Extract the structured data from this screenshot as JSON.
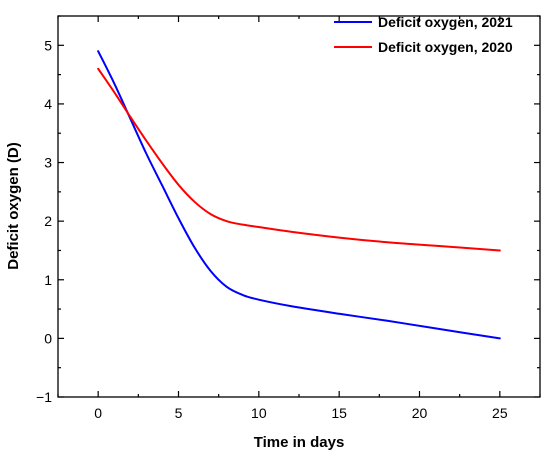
{
  "chart_data": {
    "type": "line",
    "title": "",
    "xlabel": "Time in days",
    "ylabel": "Deficit oxygen (D)",
    "xlim": [
      -2.5,
      27.5
    ],
    "ylim": [
      -1,
      5.5
    ],
    "xticks": [
      0,
      5,
      10,
      15,
      20,
      25
    ],
    "yticks": [
      -1,
      0,
      1,
      2,
      3,
      4,
      5
    ],
    "xtick_labels": [
      "0",
      "5",
      "10",
      "15",
      "20",
      "25"
    ],
    "ytick_labels": [
      "−1",
      "0",
      "1",
      "2",
      "3",
      "4",
      "5"
    ],
    "grid": false,
    "legend_position": "top-right",
    "series": [
      {
        "name": "Deficit oxygen, 2021",
        "color": "#0000ff",
        "x": [
          0,
          1,
          2,
          3,
          4,
          5,
          6,
          7,
          8,
          9,
          10,
          12,
          15,
          18,
          21,
          25
        ],
        "y": [
          4.9,
          4.35,
          3.75,
          3.15,
          2.6,
          2.05,
          1.55,
          1.15,
          0.88,
          0.74,
          0.66,
          0.55,
          0.42,
          0.3,
          0.17,
          0.0
        ]
      },
      {
        "name": "Deficit oxygen, 2020",
        "color": "#ff0000",
        "x": [
          0,
          1,
          2,
          3,
          4,
          5,
          6,
          7,
          8,
          9,
          10,
          12,
          15,
          18,
          21,
          25
        ],
        "y": [
          4.6,
          4.2,
          3.78,
          3.37,
          2.98,
          2.62,
          2.33,
          2.12,
          2.0,
          1.94,
          1.9,
          1.82,
          1.72,
          1.64,
          1.58,
          1.5
        ]
      }
    ]
  }
}
